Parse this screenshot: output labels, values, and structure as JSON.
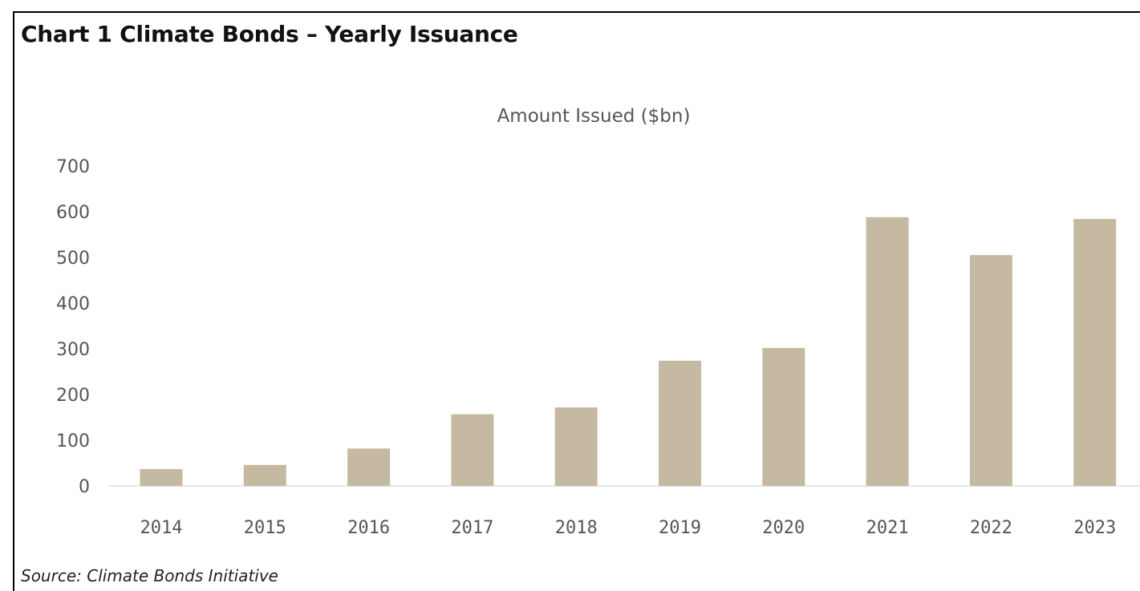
{
  "heading": "Chart 1 Climate Bonds – Yearly Issuance",
  "source": "Source: Climate Bonds Initiative",
  "colors": {
    "bar": "#c6b9a1",
    "axis_text": "#555555",
    "baseline": "#e6e6e6"
  },
  "chart_data": {
    "type": "bar",
    "title": "Amount Issued ($bn)",
    "xlabel": "",
    "ylabel": "",
    "categories": [
      "2014",
      "2015",
      "2016",
      "2017",
      "2018",
      "2019",
      "2020",
      "2021",
      "2022",
      "2023"
    ],
    "values": [
      37,
      46,
      82,
      157,
      172,
      274,
      302,
      588,
      505,
      584
    ],
    "ylim": [
      0,
      700
    ],
    "yticks": [
      "0",
      "100",
      "200",
      "300",
      "400",
      "500",
      "600",
      "700"
    ],
    "grid": false,
    "legend": "none"
  }
}
